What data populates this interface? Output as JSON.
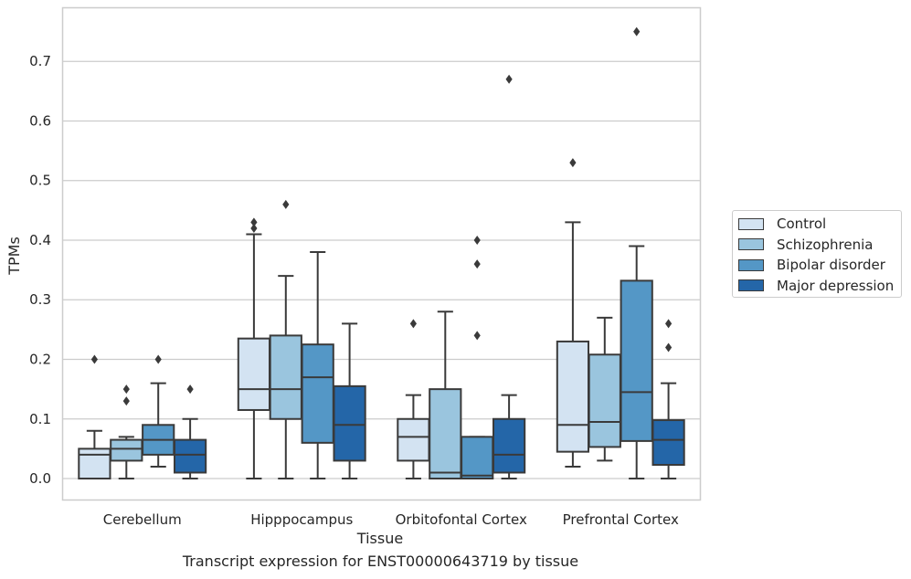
{
  "chart_data": {
    "type": "box",
    "xlabel": "Tissue",
    "ylabel": "TPMs",
    "ylim": [
      -0.036,
      0.79
    ],
    "yticks": [
      "0.0",
      "0.1",
      "0.2",
      "0.3",
      "0.4",
      "0.5",
      "0.6",
      "0.7"
    ],
    "grid": true,
    "legend_placement": "right",
    "categories": [
      "Cerebellum",
      "Hipppocampus",
      "Orbitofontal Cortex",
      "Prefrontal Cortex"
    ],
    "series": [
      {
        "name": "Control",
        "color": "#d3e3f2",
        "boxes": [
          {
            "whislo": 0.0,
            "q1": 0.0,
            "med": 0.04,
            "q3": 0.05,
            "whishi": 0.08,
            "fliers": [
              0.2
            ]
          },
          {
            "whislo": 0.0,
            "q1": 0.115,
            "med": 0.15,
            "q3": 0.235,
            "whishi": 0.41,
            "fliers": [
              0.42,
              0.43
            ]
          },
          {
            "whislo": 0.0,
            "q1": 0.03,
            "med": 0.07,
            "q3": 0.1,
            "whishi": 0.14,
            "fliers": [
              0.26
            ]
          },
          {
            "whislo": 0.02,
            "q1": 0.045,
            "med": 0.09,
            "q3": 0.23,
            "whishi": 0.43,
            "fliers": [
              0.53
            ]
          }
        ]
      },
      {
        "name": "Schizophrenia",
        "color": "#9ac5de",
        "boxes": [
          {
            "whislo": 0.0,
            "q1": 0.03,
            "med": 0.05,
            "q3": 0.065,
            "whishi": 0.07,
            "fliers": [
              0.13,
              0.15
            ]
          },
          {
            "whislo": 0.0,
            "q1": 0.1,
            "med": 0.15,
            "q3": 0.24,
            "whishi": 0.34,
            "fliers": [
              0.46
            ]
          },
          {
            "whislo": 0.0,
            "q1": 0.0,
            "med": 0.01,
            "q3": 0.15,
            "whishi": 0.28,
            "fliers": []
          },
          {
            "whislo": 0.03,
            "q1": 0.053,
            "med": 0.095,
            "q3": 0.208,
            "whishi": 0.27,
            "fliers": []
          }
        ]
      },
      {
        "name": "Bipolar disorder",
        "color": "#5497c6",
        "boxes": [
          {
            "whislo": 0.02,
            "q1": 0.04,
            "med": 0.065,
            "q3": 0.09,
            "whishi": 0.16,
            "fliers": [
              0.2
            ]
          },
          {
            "whislo": 0.0,
            "q1": 0.06,
            "med": 0.17,
            "q3": 0.225,
            "whishi": 0.38,
            "fliers": []
          },
          {
            "whislo": 0.0,
            "q1": 0.0,
            "med": 0.005,
            "q3": 0.07,
            "whishi": 0.07,
            "fliers": [
              0.24,
              0.36,
              0.4
            ]
          },
          {
            "whislo": 0.0,
            "q1": 0.063,
            "med": 0.145,
            "q3": 0.332,
            "whishi": 0.39,
            "fliers": [
              0.75
            ]
          }
        ]
      },
      {
        "name": "Major depression",
        "color": "#2466a8",
        "boxes": [
          {
            "whislo": 0.0,
            "q1": 0.01,
            "med": 0.04,
            "q3": 0.065,
            "whishi": 0.1,
            "fliers": [
              0.15
            ]
          },
          {
            "whislo": 0.0,
            "q1": 0.03,
            "med": 0.09,
            "q3": 0.155,
            "whishi": 0.26,
            "fliers": []
          },
          {
            "whislo": 0.0,
            "q1": 0.01,
            "med": 0.04,
            "q3": 0.1,
            "whishi": 0.14,
            "fliers": [
              0.67
            ]
          },
          {
            "whislo": 0.0,
            "q1": 0.023,
            "med": 0.065,
            "q3": 0.098,
            "whishi": 0.16,
            "fliers": [
              0.22,
              0.26
            ]
          }
        ]
      }
    ]
  },
  "caption": "Transcript expression for ENST00000643719 by tissue"
}
